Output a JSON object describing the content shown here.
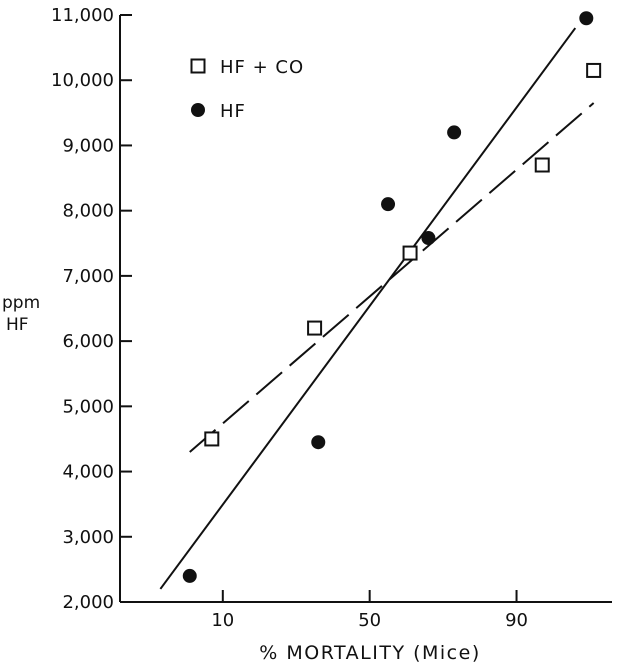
{
  "chart_data": {
    "type": "scatter",
    "title": "",
    "xlabel": "% MORTALITY  (Mice)",
    "ylabel_line1": "ppm",
    "ylabel_line2": "HF",
    "xlim": [
      -18,
      116
    ],
    "ylim": [
      2000,
      11000
    ],
    "x_ticks": [
      10,
      50,
      90
    ],
    "x_tick_labels": [
      "10",
      "50",
      "90"
    ],
    "y_ticks": [
      2000,
      3000,
      4000,
      5000,
      6000,
      7000,
      8000,
      9000,
      10000,
      11000
    ],
    "y_tick_labels": [
      "2,000",
      "3,000",
      "4,000",
      "5,000",
      "6,000",
      "7,000",
      "8,000",
      "9,000",
      "10,000",
      "11,000"
    ],
    "legend_position": "top-left",
    "grid": false,
    "series": [
      {
        "name": "HF + CO",
        "marker": "open-square",
        "points": [
          [
            7,
            4500
          ],
          [
            35,
            6200
          ],
          [
            61,
            7350
          ],
          [
            97,
            8700
          ],
          [
            111,
            10150
          ]
        ],
        "fit_line": {
          "style": "dashed",
          "from": [
            1,
            4300
          ],
          "to": [
            111,
            9650
          ]
        }
      },
      {
        "name": "HF",
        "marker": "filled-circle",
        "points": [
          [
            1,
            2400
          ],
          [
            36,
            4450
          ],
          [
            55,
            8100
          ],
          [
            66,
            7580
          ],
          [
            73,
            9200
          ],
          [
            109,
            10950
          ]
        ],
        "fit_line": {
          "style": "solid",
          "from": [
            -7,
            2200
          ],
          "to": [
            106,
            10800
          ]
        }
      }
    ]
  }
}
